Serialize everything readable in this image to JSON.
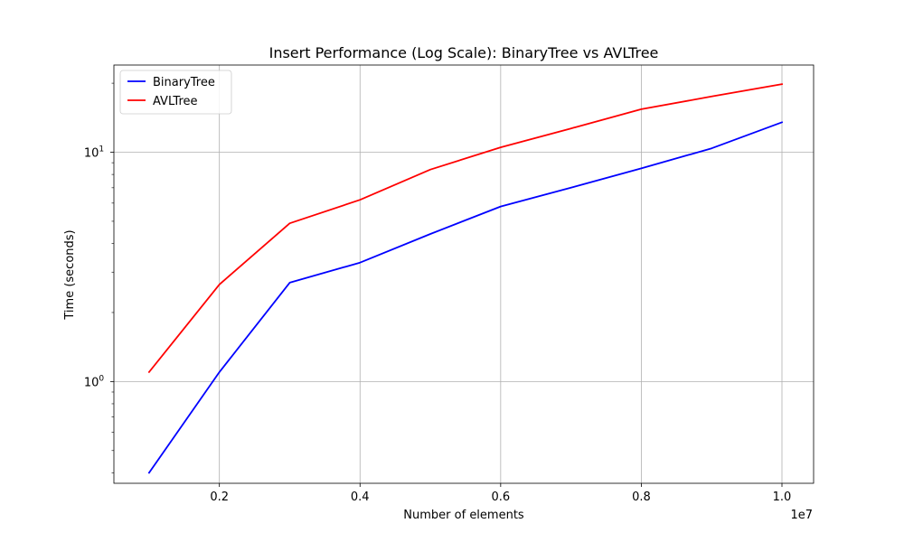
{
  "chart_data": {
    "type": "line",
    "title": "Insert Performance (Log Scale): BinaryTree vs AVLTree",
    "xlabel": "Number of elements",
    "ylabel": "Time (seconds)",
    "x_offset_label": "1e7",
    "yscale": "log",
    "grid": true,
    "legend_position": "top-left",
    "x": [
      1000000,
      2000000,
      3000000,
      4000000,
      5000000,
      6000000,
      7000000,
      8000000,
      9000000,
      10000000
    ],
    "xlim": [
      500000,
      10450000
    ],
    "ylim": [
      0.36,
      24
    ],
    "x_ticks": [
      {
        "value": 2000000,
        "label": "0.2"
      },
      {
        "value": 4000000,
        "label": "0.4"
      },
      {
        "value": 6000000,
        "label": "0.6"
      },
      {
        "value": 8000000,
        "label": "0.8"
      },
      {
        "value": 10000000,
        "label": "1.0"
      }
    ],
    "y_ticks": [
      {
        "value": 1,
        "label": "10⁰",
        "base": "10",
        "exp": "0"
      },
      {
        "value": 10,
        "label": "10¹",
        "base": "10",
        "exp": "1"
      }
    ],
    "series": [
      {
        "name": "BinaryTree",
        "color": "#0000ff",
        "values": [
          0.4,
          1.1,
          2.7,
          3.3,
          4.4,
          5.8,
          7.0,
          8.5,
          10.4,
          13.5
        ]
      },
      {
        "name": "AVLTree",
        "color": "#ff0000",
        "values": [
          1.1,
          2.65,
          4.9,
          6.2,
          8.4,
          10.5,
          12.7,
          15.4,
          17.5,
          19.8
        ]
      }
    ]
  }
}
